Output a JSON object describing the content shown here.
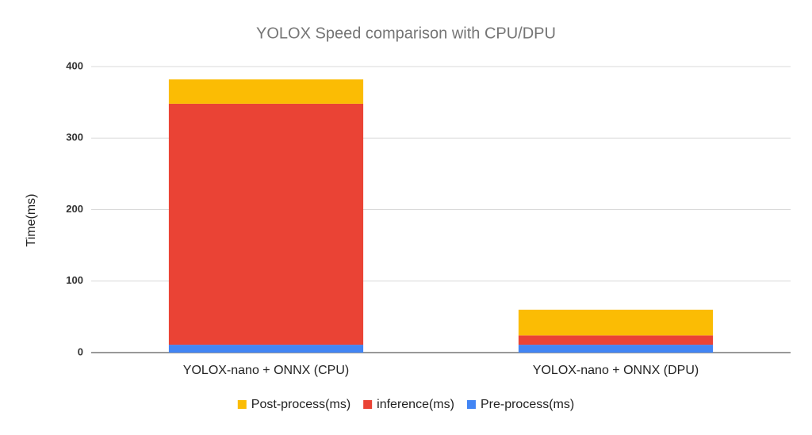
{
  "chart_data": {
    "type": "stacked_bar",
    "title": "YOLOX Speed comparison with CPU/DPU",
    "y_label": "Time(ms)",
    "categories": [
      "YOLOX-nano + ONNX (CPU)",
      "YOLOX-nano + ONNX (DPU)"
    ],
    "series": [
      {
        "name": "Post-process(ms)",
        "color": "#fbbc04",
        "values": [
          34,
          36
        ]
      },
      {
        "name": "inference(ms)",
        "color": "#ea4335",
        "values": [
          337,
          13
        ]
      },
      {
        "name": "Pre-process(ms)",
        "color": "#4285f4",
        "values": [
          11,
          11
        ]
      }
    ],
    "ylim": [
      0,
      400
    ],
    "yticks": [
      0,
      100,
      200,
      300,
      400
    ],
    "grid": true,
    "legend": "bottom"
  }
}
